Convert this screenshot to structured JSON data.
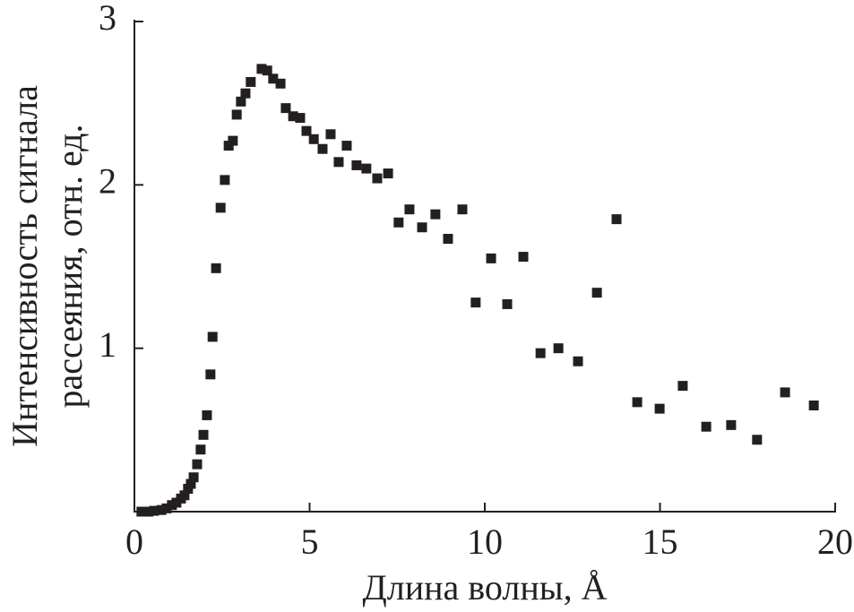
{
  "chart_data": {
    "type": "scatter",
    "x_label": "Длина волны, Å",
    "y_label": [
      "Интенсивность сигнала",
      "рассеяния, отн. ед."
    ],
    "color": "#231f20",
    "xlim": [
      0,
      20
    ],
    "xticks": [
      0,
      5,
      10,
      15,
      20
    ],
    "ylim": [
      0,
      3
    ],
    "yticks": [
      1,
      2,
      3
    ],
    "x": [
      0.2,
      0.4,
      0.56,
      0.77,
      0.92,
      1.07,
      1.2,
      1.33,
      1.43,
      1.53,
      1.61,
      1.69,
      1.79,
      1.89,
      1.97,
      2.07,
      2.17,
      2.23,
      2.33,
      2.46,
      2.58,
      2.69,
      2.81,
      2.92,
      3.04,
      3.17,
      3.32,
      3.63,
      3.79,
      3.96,
      4.17,
      4.32,
      4.53,
      4.73,
      4.91,
      5.12,
      5.37,
      5.6,
      5.83,
      6.06,
      6.34,
      6.62,
      6.93,
      7.24,
      7.54,
      7.85,
      8.21,
      8.59,
      8.95,
      9.36,
      9.74,
      10.18,
      10.64,
      11.1,
      11.59,
      12.1,
      12.66,
      13.2,
      13.76,
      14.35,
      14.99,
      15.65,
      16.32,
      17.03,
      17.77,
      18.57,
      19.39
    ],
    "values": [
      0,
      0,
      0.005,
      0.01,
      0.02,
      0.04,
      0.055,
      0.08,
      0.1,
      0.14,
      0.17,
      0.21,
      0.29,
      0.38,
      0.47,
      0.59,
      0.84,
      1.07,
      1.49,
      1.86,
      2.03,
      2.24,
      2.27,
      2.43,
      2.51,
      2.56,
      2.63,
      2.71,
      2.7,
      2.65,
      2.62,
      2.47,
      2.42,
      2.41,
      2.33,
      2.28,
      2.22,
      2.31,
      2.14,
      2.24,
      2.12,
      2.1,
      2.04,
      2.07,
      1.77,
      1.85,
      1.74,
      1.82,
      1.67,
      1.85,
      1.28,
      1.55,
      1.27,
      1.56,
      0.97,
      1.0,
      0.92,
      1.34,
      1.79,
      0.67,
      0.63,
      0.77,
      0.52,
      0.53,
      0.44,
      0.73,
      0.65
    ]
  }
}
